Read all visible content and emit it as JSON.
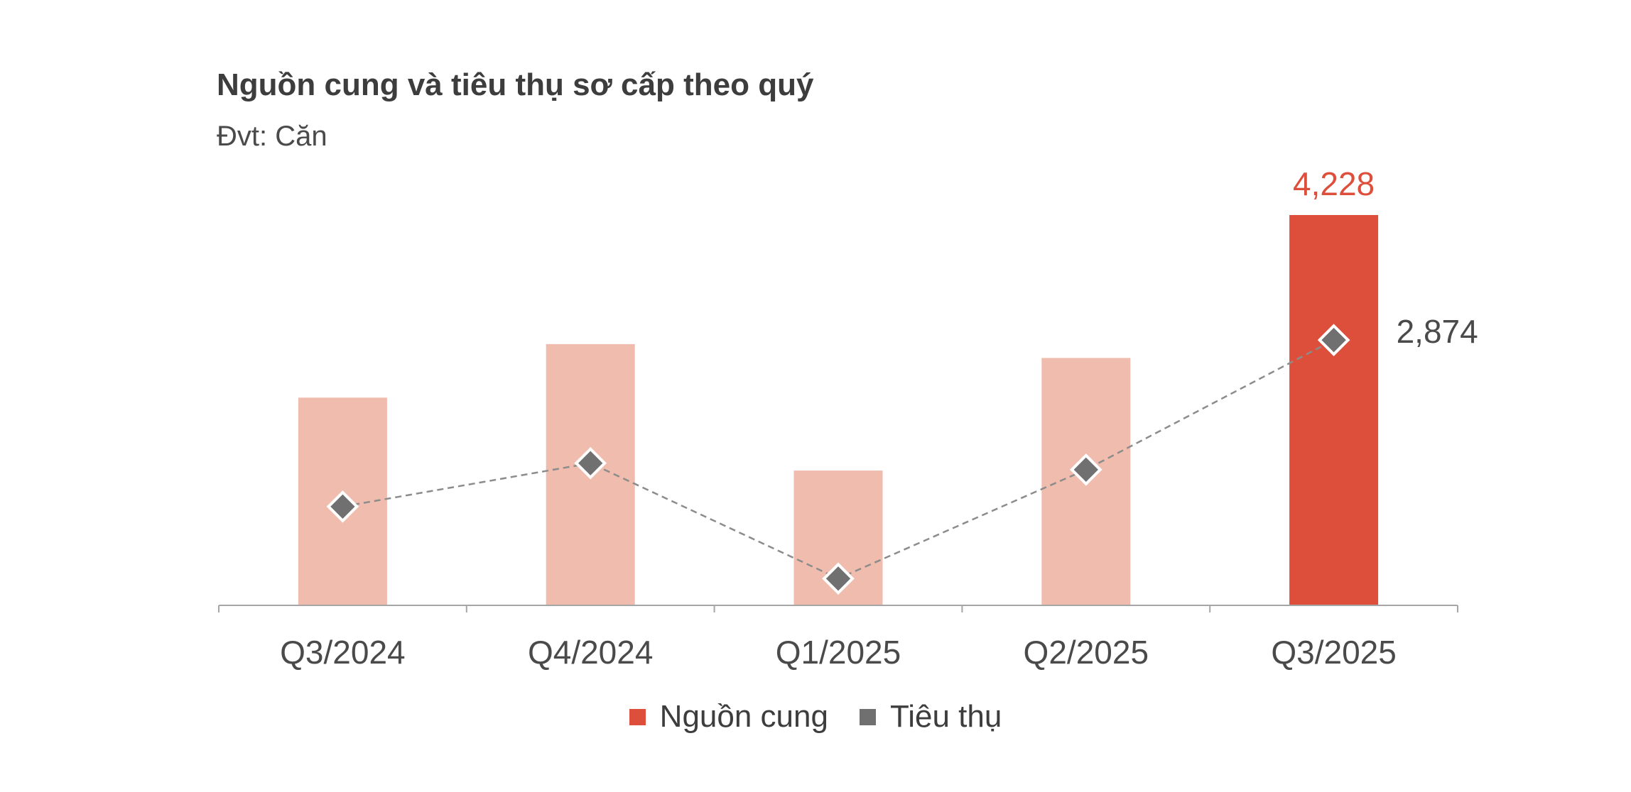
{
  "chart_data": {
    "type": "bar",
    "title": "Nguồn cung và tiêu thụ sơ cấp theo quý",
    "subtitle": "Đvt: Căn",
    "categories": [
      "Q3/2024",
      "Q4/2024",
      "Q1/2025",
      "Q2/2025",
      "Q3/2025"
    ],
    "series": [
      {
        "name": "Nguồn cung",
        "type": "bar",
        "values": [
          2250,
          2830,
          1460,
          2680,
          4228
        ],
        "data_labels": [
          "",
          "",
          "",
          "",
          "4,228"
        ],
        "color": "#dd4f3b",
        "muted_color": "#f0bcae",
        "highlight_index": 4
      },
      {
        "name": "Tiêu thụ",
        "type": "line",
        "marker": "diamond",
        "line_style": "dashed",
        "values": [
          1070,
          1540,
          290,
          1470,
          2874
        ],
        "data_labels": [
          "",
          "",
          "",
          "",
          "2,874"
        ],
        "color": "#707070"
      }
    ],
    "ylim": [
      0,
      4228
    ],
    "grid": false,
    "y_axis_visible": false,
    "legend_position": "bottom-center"
  }
}
